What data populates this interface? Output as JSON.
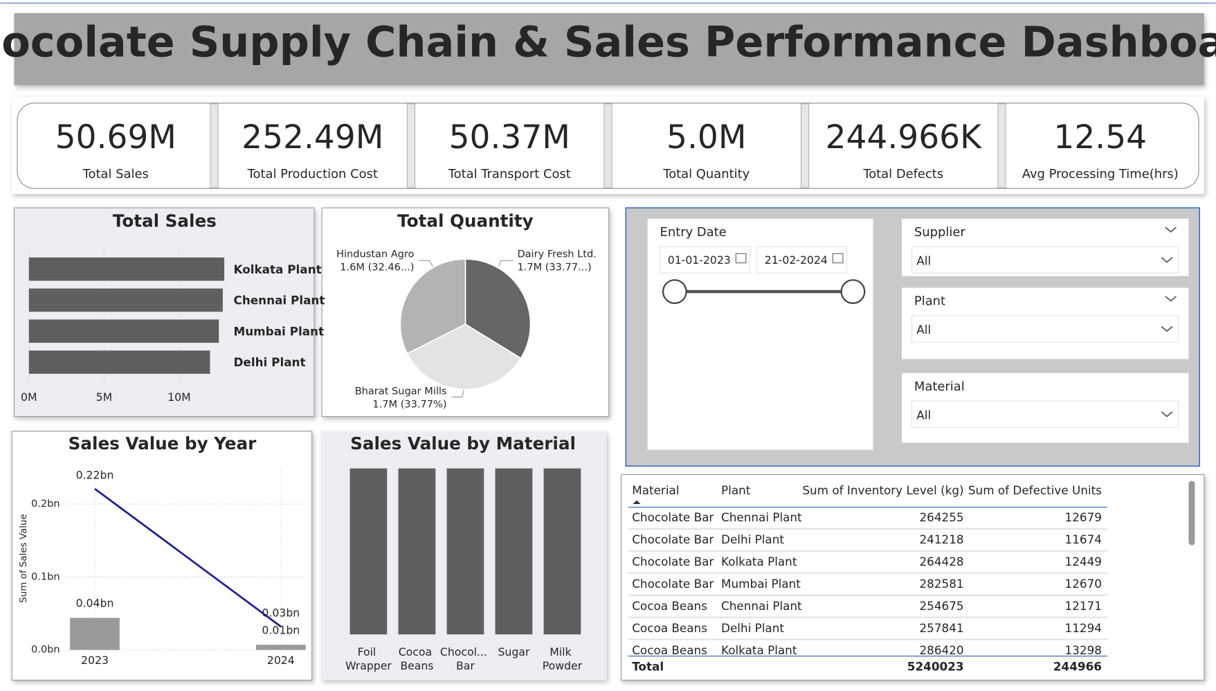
{
  "header": {
    "title": "Chocolate Supply Chain & Sales Performance Dashboard"
  },
  "kpis": [
    {
      "value": "50.69M",
      "label": "Total Sales"
    },
    {
      "value": "252.49M",
      "label": "Total Production Cost"
    },
    {
      "value": "50.37M",
      "label": "Total Transport Cost"
    },
    {
      "value": "5.0M",
      "label": "Total Quantity"
    },
    {
      "value": "244.966K",
      "label": "Total Defects"
    },
    {
      "value": "12.54",
      "label": "Avg Processing Time(hrs)"
    }
  ],
  "chart_data": [
    {
      "type": "bar",
      "orientation": "horizontal",
      "title": "Total Sales",
      "categories": [
        "Kolkata Plant",
        "Chennai Plant",
        "Mumbai Plant",
        "Delhi Plant"
      ],
      "values": [
        13000000,
        12900000,
        12640000,
        12050000
      ],
      "color": "#5f5f5f",
      "xlim": [
        0,
        13000000
      ],
      "xticks": [
        {
          "value": 0,
          "label": "0M"
        },
        {
          "value": 5000000,
          "label": "5M"
        },
        {
          "value": 10000000,
          "label": "10M"
        }
      ],
      "grid": true
    },
    {
      "type": "pie",
      "title": "Total Quantity",
      "categories": [
        "Dairy Fresh Ltd.",
        "Bharat Sugar Mills",
        "Hindustan Agro"
      ],
      "values": [
        33.77,
        33.77,
        32.46
      ],
      "value_labels": [
        "1.7M (33.77...)",
        "1.7M (33.77%)",
        "1.6M (32.46...)"
      ],
      "colors": [
        "#666666",
        "#e3e3e3",
        "#b3b3b3"
      ]
    },
    {
      "type": "combo",
      "title": "Sales Value by Year",
      "y_label": "Sum of Sales Value",
      "categories": [
        "2023",
        "2024"
      ],
      "series": [
        {
          "type": "bar",
          "color": "#9a9a9a",
          "values": [
            0.044,
            0.007
          ],
          "value_labels": [
            "0.04bn",
            "0.01bn"
          ]
        },
        {
          "type": "line",
          "color": "#1f1f8f",
          "values": [
            0.221,
            0.032
          ],
          "value_labels": [
            "0.22bn",
            "0.03bn"
          ]
        }
      ],
      "ylim": [
        0,
        0.25
      ],
      "yticks": [
        {
          "value": 0,
          "label": "0.0bn"
        },
        {
          "value": 0.1,
          "label": "0.1bn"
        },
        {
          "value": 0.2,
          "label": "0.2bn"
        }
      ],
      "grid": true
    },
    {
      "type": "bar",
      "orientation": "vertical",
      "title": "Sales Value by Material",
      "categories": [
        "Foil Wrapper",
        "Cocoa Beans",
        "Chocol... Bar",
        "Sugar",
        "Milk Powder"
      ],
      "values": [
        10140000,
        10140000,
        10140000,
        10140000,
        10140000
      ],
      "color": "#5f5f5f"
    }
  ],
  "slicers": {
    "entry_date": {
      "label": "Entry Date",
      "start": "01-01-2023",
      "end": "21-02-2024"
    },
    "supplier": {
      "label": "Supplier",
      "value": "All"
    },
    "plant": {
      "label": "Plant",
      "value": "All"
    },
    "material": {
      "label": "Material",
      "value": "All"
    }
  },
  "table": {
    "columns": [
      "Material",
      "Plant",
      "Sum of Inventory Level (kg)",
      "Sum of Defective Units"
    ],
    "rows": [
      [
        "Chocolate Bar",
        "Chennai Plant",
        264255,
        12679
      ],
      [
        "Chocolate Bar",
        "Delhi Plant",
        241218,
        11674
      ],
      [
        "Chocolate Bar",
        "Kolkata Plant",
        264428,
        12449
      ],
      [
        "Chocolate Bar",
        "Mumbai Plant",
        282581,
        12670
      ],
      [
        "Cocoa Beans",
        "Chennai Plant",
        254675,
        12171
      ],
      [
        "Cocoa Beans",
        "Delhi Plant",
        257841,
        11294
      ],
      [
        "Cocoa Beans",
        "Kolkata Plant",
        286420,
        13298
      ]
    ],
    "total": [
      "Total",
      5240023,
      244966
    ]
  }
}
